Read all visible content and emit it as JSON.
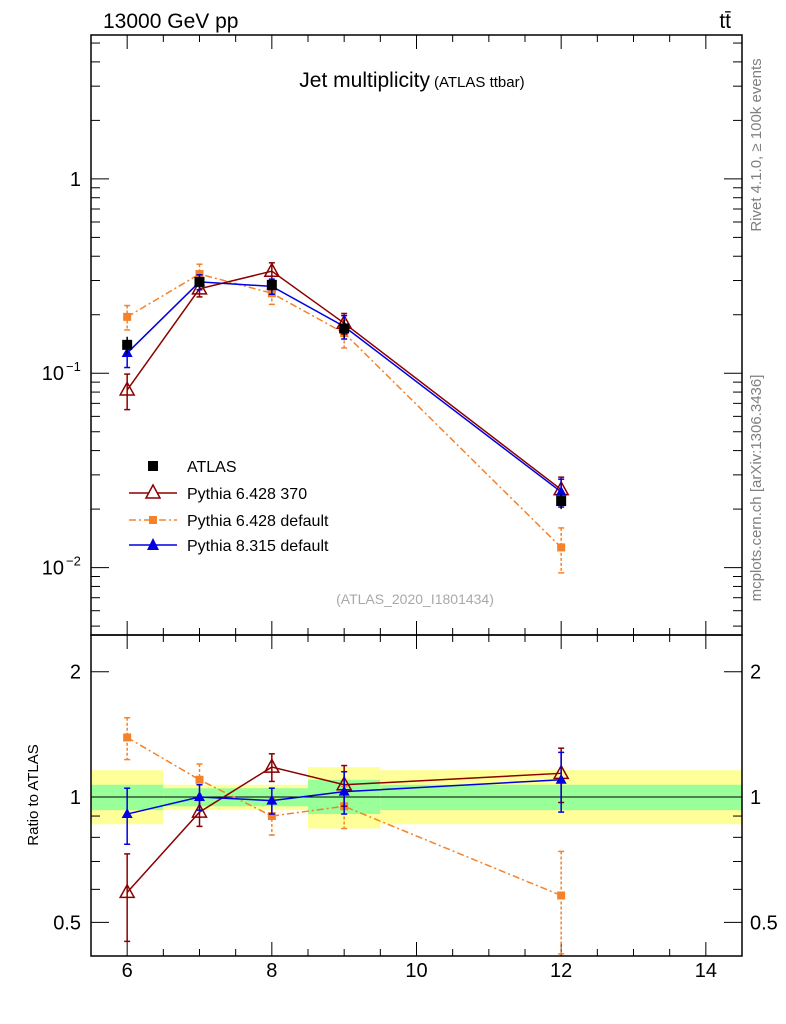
{
  "header": {
    "energy_label": "13000 GeV pp",
    "process_label": "tt̄"
  },
  "side_labels": {
    "rivet": "Rivet 4.1.0, ≥ 100k events",
    "source": "mcplots.cern.ch [arXiv:1306.3436]"
  },
  "colors": {
    "data": "#000000",
    "pythia6_370": "#8b0000",
    "pythia6_default": "#f5822a",
    "pythia8_default": "#0000e0",
    "band_inner": "#99ff99",
    "band_outer": "#ffff99"
  },
  "chart_data": [
    {
      "type": "scatter",
      "panel": "main",
      "title": "Jet multiplicity",
      "subtitle": "(ATLAS ttbar)",
      "watermark": "(ATLAS_2020_I1801434)",
      "xlabel": "",
      "ylabel": "",
      "xlim": [
        5.5,
        14.5
      ],
      "ylim": [
        0.0045,
        5.5
      ],
      "yscale": "log",
      "x_ticks": [
        6,
        8,
        10,
        12,
        14
      ],
      "y_ticks": [
        {
          "value": 1,
          "label": "1"
        },
        {
          "value": 0.1,
          "label": "10",
          "exponent": "−1"
        },
        {
          "value": 0.01,
          "label": "10",
          "exponent": "−2"
        }
      ],
      "x": [
        6,
        7,
        8,
        9,
        12
      ],
      "series": [
        {
          "name": "ATLAS",
          "marker": "square",
          "values": [
            0.14,
            0.295,
            0.285,
            0.17,
            0.022
          ],
          "errors": [
            0.014,
            0.02,
            0.02,
            0.018,
            0.002
          ]
        },
        {
          "name": "Pythia 6.428 370",
          "marker": "open-triangle",
          "line": "solid",
          "values": [
            0.082,
            0.272,
            0.335,
            0.181,
            0.0252
          ],
          "errors": [
            0.017,
            0.025,
            0.035,
            0.022,
            0.004
          ]
        },
        {
          "name": "Pythia 6.428 default",
          "marker": "small-square",
          "line": "dashdot",
          "values": [
            0.195,
            0.324,
            0.258,
            0.161,
            0.0127
          ],
          "errors": [
            0.028,
            0.04,
            0.032,
            0.026,
            0.0033
          ]
        },
        {
          "name": "Pythia 8.315 default",
          "marker": "filled-triangle",
          "line": "solid",
          "values": [
            0.127,
            0.295,
            0.28,
            0.174,
            0.0245
          ],
          "errors": [
            0.02,
            0.026,
            0.025,
            0.024,
            0.004
          ]
        }
      ]
    },
    {
      "type": "scatter",
      "panel": "ratio",
      "ylabel": "Ratio to ATLAS",
      "xlim": [
        5.5,
        14.5
      ],
      "ylim": [
        0.415,
        2.45
      ],
      "yscale": "log",
      "x_ticks": [
        6,
        8,
        10,
        12,
        14
      ],
      "y_ticks": [
        {
          "value": 0.5,
          "label": "0.5"
        },
        {
          "value": 1,
          "label": "1"
        },
        {
          "value": 2,
          "label": "2"
        }
      ],
      "uncertainty_bands": [
        {
          "x_range": [
            5.5,
            6.5
          ],
          "inner": [
            0.93,
            1.07
          ],
          "outer": [
            0.86,
            1.16
          ]
        },
        {
          "x_range": [
            6.5,
            7.5
          ],
          "inner": [
            0.95,
            1.05
          ],
          "outer": [
            0.93,
            1.07
          ]
        },
        {
          "x_range": [
            7.5,
            8.5
          ],
          "inner": [
            0.95,
            1.05
          ],
          "outer": [
            0.93,
            1.07
          ]
        },
        {
          "x_range": [
            8.5,
            9.5
          ],
          "inner": [
            0.91,
            1.1
          ],
          "outer": [
            0.84,
            1.18
          ]
        },
        {
          "x_range": [
            9.5,
            14.5
          ],
          "inner": [
            0.93,
            1.07
          ],
          "outer": [
            0.86,
            1.16
          ]
        }
      ],
      "x": [
        6,
        7,
        8,
        9,
        12
      ],
      "series": [
        {
          "name": "Pythia 6.428 370",
          "values": [
            0.59,
            0.92,
            1.18,
            1.07,
            1.14
          ],
          "errors": [
            0.14,
            0.07,
            0.09,
            0.12,
            0.17
          ]
        },
        {
          "name": "Pythia 6.428 default",
          "values": [
            1.39,
            1.1,
            0.9,
            0.95,
            0.58
          ],
          "errors": [
            0.16,
            0.1,
            0.09,
            0.11,
            0.16
          ]
        },
        {
          "name": "Pythia 8.315 default",
          "values": [
            0.91,
            1.0,
            0.98,
            1.03,
            1.1
          ],
          "errors": [
            0.14,
            0.07,
            0.07,
            0.12,
            0.18
          ]
        }
      ]
    }
  ]
}
